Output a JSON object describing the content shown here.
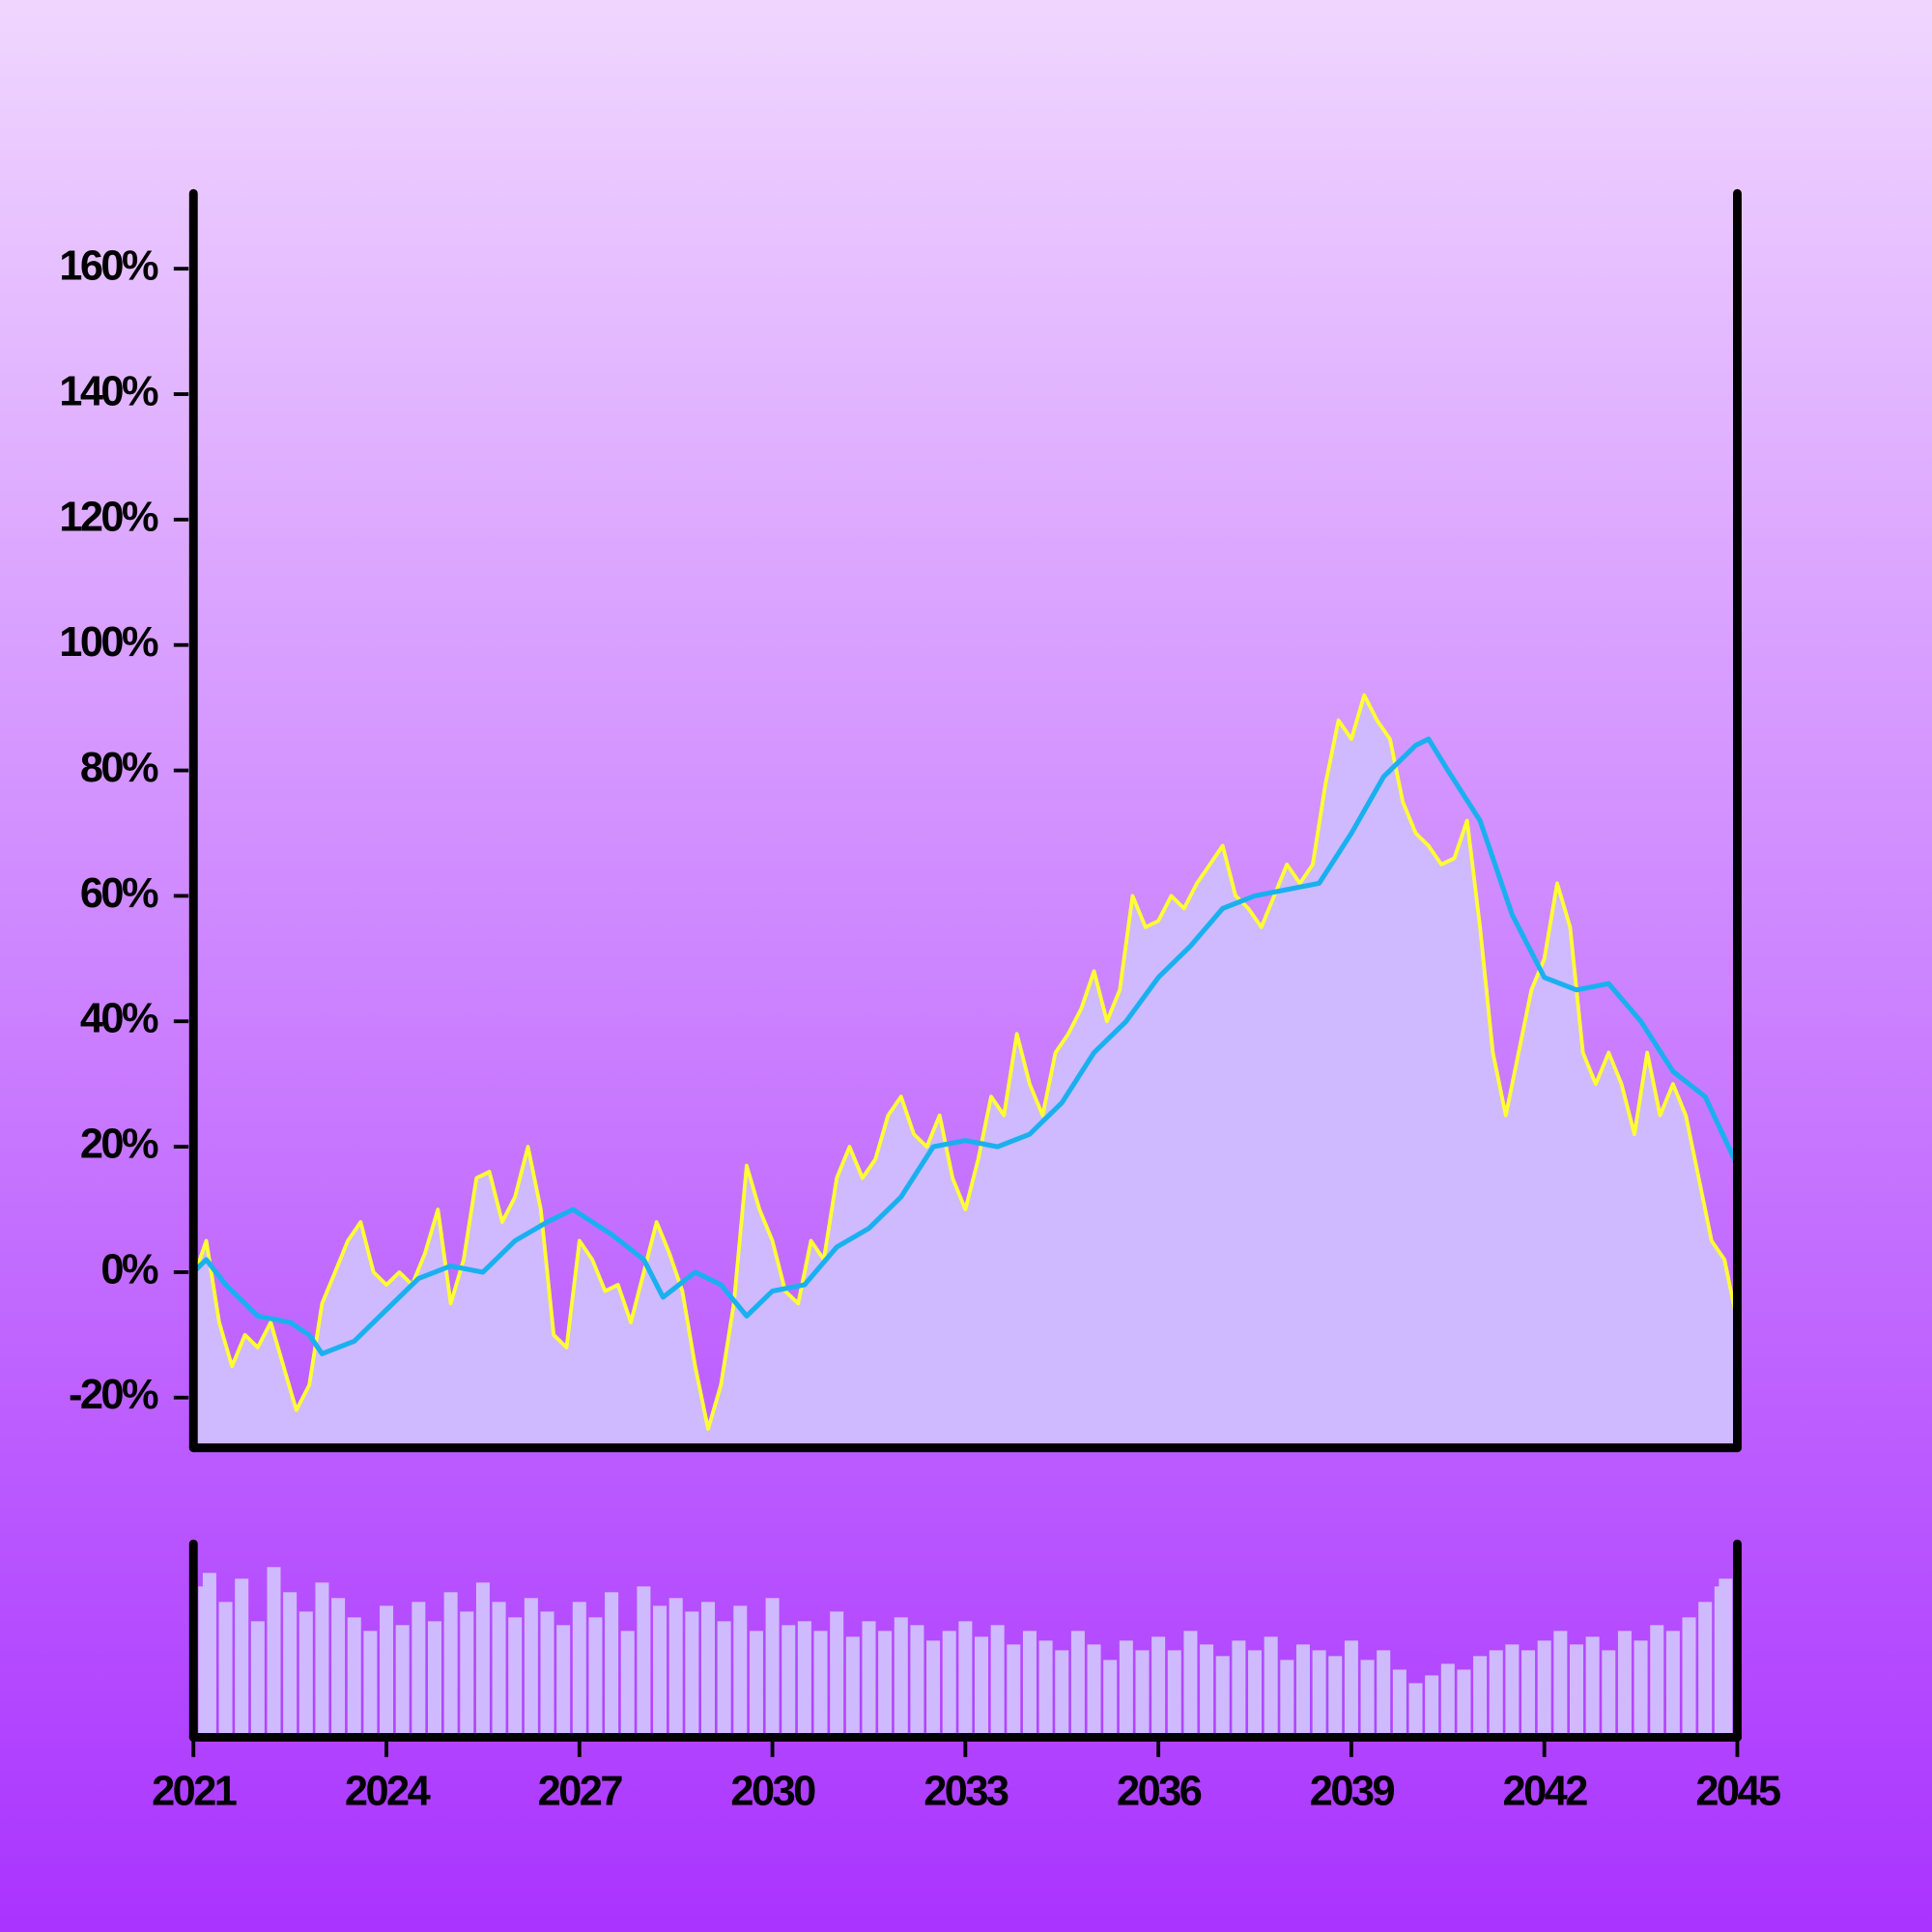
{
  "chart_data": [
    {
      "type": "line",
      "x": [
        2021.0,
        2021.2,
        2021.4,
        2021.6,
        2021.8,
        2022.0,
        2022.2,
        2022.4,
        2022.6,
        2022.8,
        2023.0,
        2023.2,
        2023.4,
        2023.6,
        2023.8,
        2024.0,
        2024.2,
        2024.4,
        2024.6,
        2024.8,
        2025.0,
        2025.2,
        2025.4,
        2025.6,
        2025.8,
        2026.0,
        2026.2,
        2026.4,
        2026.6,
        2026.8,
        2027.0,
        2027.2,
        2027.4,
        2027.6,
        2027.8,
        2028.0,
        2028.2,
        2028.4,
        2028.6,
        2028.8,
        2029.0,
        2029.2,
        2029.4,
        2029.6,
        2029.8,
        2030.0,
        2030.2,
        2030.4,
        2030.6,
        2030.8,
        2031.0,
        2031.2,
        2031.4,
        2031.6,
        2031.8,
        2032.0,
        2032.2,
        2032.4,
        2032.6,
        2032.8,
        2033.0,
        2033.2,
        2033.4,
        2033.6,
        2033.8,
        2034.0,
        2034.2,
        2034.4,
        2034.6,
        2034.8,
        2035.0,
        2035.2,
        2035.4,
        2035.6,
        2035.8,
        2036.0,
        2036.2,
        2036.4,
        2036.6,
        2036.8,
        2037.0,
        2037.2,
        2037.4,
        2037.6,
        2037.8,
        2038.0,
        2038.2,
        2038.4,
        2038.6,
        2038.8,
        2039.0,
        2039.2,
        2039.4,
        2039.6,
        2039.8,
        2040.0,
        2040.2,
        2040.4,
        2040.6,
        2040.8,
        2041.0,
        2041.2,
        2041.4,
        2041.6,
        2041.8,
        2042.0,
        2042.2,
        2042.4,
        2042.6,
        2042.8,
        2043.0,
        2043.2,
        2043.4,
        2043.6,
        2043.8,
        2044.0,
        2044.2,
        2044.4,
        2044.6,
        2044.8,
        2045.0
      ],
      "series": [
        {
          "color": "#ffff33",
          "fill_color": "#cfbaff",
          "values": [
            -1,
            5,
            -8,
            -15,
            -10,
            -12,
            -8,
            -15,
            -22,
            -18,
            -5,
            0,
            5,
            8,
            0,
            -2,
            0,
            -2,
            3,
            10,
            -5,
            2,
            15,
            16,
            8,
            12,
            20,
            10,
            -10,
            -12,
            5,
            2,
            -3,
            -2,
            -8,
            0,
            8,
            3,
            -3,
            -15,
            -25,
            -18,
            -5,
            17,
            10,
            5,
            -3,
            -5,
            5,
            2,
            15,
            20,
            15,
            18,
            25,
            28,
            22,
            20,
            25,
            15,
            10,
            18,
            28,
            25,
            38,
            30,
            25,
            35,
            38,
            42,
            48,
            40,
            45,
            60,
            55,
            56,
            60,
            58,
            62,
            65,
            68,
            60,
            58,
            55,
            60,
            65,
            62,
            65,
            78,
            88,
            85,
            92,
            88,
            85,
            75,
            70,
            68,
            65,
            66,
            72,
            55,
            35,
            25,
            35,
            45,
            50,
            62,
            55,
            35,
            30,
            35,
            30,
            22,
            35,
            25,
            30,
            25,
            15,
            5,
            2,
            -8
          ]
        },
        {
          "color": "#1ab0f0",
          "x": [
            2021.0,
            2021.2,
            2021.5,
            2022.0,
            2022.5,
            2022.8,
            2023.0,
            2023.5,
            2024.0,
            2024.5,
            2025.0,
            2025.5,
            2026.0,
            2026.5,
            2026.9,
            2027.5,
            2028.0,
            2028.3,
            2028.8,
            2029.2,
            2029.6,
            2030.0,
            2030.5,
            2031.0,
            2031.5,
            2032.0,
            2032.5,
            2033.0,
            2033.5,
            2034.0,
            2034.5,
            2035.0,
            2035.5,
            2036.0,
            2036.5,
            2037.0,
            2037.5,
            2038.0,
            2038.5,
            2039.0,
            2039.5,
            2040.0,
            2040.2,
            2040.5,
            2041.0,
            2041.5,
            2042.0,
            2042.5,
            2043.0,
            2043.5,
            2044.0,
            2044.5,
            2045.0
          ],
          "values": [
            0,
            2,
            -2,
            -7,
            -8,
            -10,
            -13,
            -11,
            -6,
            -1,
            1,
            0,
            5,
            8,
            10,
            6,
            2,
            -4,
            0,
            -2,
            -7,
            -3,
            -2,
            4,
            7,
            12,
            20,
            21,
            20,
            22,
            27,
            35,
            40,
            47,
            52,
            58,
            60,
            61,
            62,
            70,
            79,
            84,
            85,
            80,
            72,
            57,
            47,
            45,
            46,
            40,
            32,
            28,
            17
          ]
        }
      ],
      "xlim": [
        2021,
        2045
      ],
      "ylim": [
        -28,
        172
      ],
      "yticks": [
        {
          "value": -20,
          "label": "-20%"
        },
        {
          "value": 0,
          "label": "0%"
        },
        {
          "value": 20,
          "label": "20%"
        },
        {
          "value": 40,
          "label": "40%"
        },
        {
          "value": 60,
          "label": "60%"
        },
        {
          "value": 80,
          "label": "80%"
        },
        {
          "value": 100,
          "label": "100%"
        },
        {
          "value": 120,
          "label": "120%"
        },
        {
          "value": 140,
          "label": "140%"
        },
        {
          "value": 160,
          "label": "160%"
        }
      ]
    },
    {
      "type": "bar",
      "x": [
        2021.0,
        2021.25,
        2021.5,
        2021.75,
        2022.0,
        2022.25,
        2022.5,
        2022.75,
        2023.0,
        2023.25,
        2023.5,
        2023.75,
        2024.0,
        2024.25,
        2024.5,
        2024.75,
        2025.0,
        2025.25,
        2025.5,
        2025.75,
        2026.0,
        2026.25,
        2026.5,
        2026.75,
        2027.0,
        2027.25,
        2027.5,
        2027.75,
        2028.0,
        2028.25,
        2028.5,
        2028.75,
        2029.0,
        2029.25,
        2029.5,
        2029.75,
        2030.0,
        2030.25,
        2030.5,
        2030.75,
        2031.0,
        2031.25,
        2031.5,
        2031.75,
        2032.0,
        2032.25,
        2032.5,
        2032.75,
        2033.0,
        2033.25,
        2033.5,
        2033.75,
        2034.0,
        2034.25,
        2034.5,
        2034.75,
        2035.0,
        2035.25,
        2035.5,
        2035.75,
        2036.0,
        2036.25,
        2036.5,
        2036.75,
        2037.0,
        2037.25,
        2037.5,
        2037.75,
        2038.0,
        2038.25,
        2038.5,
        2038.75,
        2039.0,
        2039.25,
        2039.5,
        2039.75,
        2040.0,
        2040.25,
        2040.5,
        2040.75,
        2041.0,
        2041.25,
        2041.5,
        2041.75,
        2042.0,
        2042.25,
        2042.5,
        2042.75,
        2043.0,
        2043.25,
        2043.5,
        2043.75,
        2044.0,
        2044.25,
        2044.5,
        2044.75,
        2045.0
      ],
      "values": [
        78,
        85,
        70,
        82,
        60,
        88,
        75,
        65,
        80,
        72,
        62,
        55,
        68,
        58,
        70,
        60,
        75,
        65,
        80,
        70,
        62,
        72,
        65,
        58,
        70,
        62,
        75,
        55,
        78,
        68,
        72,
        65,
        70,
        60,
        68,
        55,
        72,
        58,
        60,
        55,
        65,
        52,
        60,
        55,
        62,
        58,
        50,
        55,
        60,
        52,
        58,
        48,
        55,
        50,
        45,
        55,
        48,
        40,
        50,
        45,
        52,
        45,
        55,
        48,
        42,
        50,
        45,
        52,
        40,
        48,
        45,
        42,
        50,
        40,
        45,
        35,
        28,
        32,
        38,
        35,
        42,
        45,
        48,
        45,
        50,
        55,
        48,
        52,
        45,
        55,
        50,
        58,
        55,
        62,
        70,
        78,
        82
      ],
      "color": "#cfbaff",
      "xlim": [
        2021,
        2045
      ],
      "ylim": [
        0,
        100
      ],
      "xticks": [
        2021,
        2024,
        2027,
        2030,
        2033,
        2036,
        2039,
        2042,
        2045
      ]
    }
  ]
}
